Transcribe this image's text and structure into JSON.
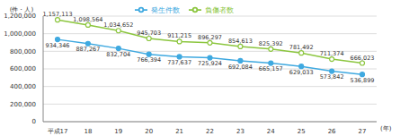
{
  "chart_data": {
    "type": "line",
    "y_label": "(件・人)",
    "x_label": "(年)",
    "categories": [
      "平成17",
      "18",
      "19",
      "20",
      "21",
      "22",
      "23",
      "24",
      "25",
      "26",
      "27"
    ],
    "series": [
      {
        "name": "発生件数",
        "color": "#3fa9e0",
        "marker": "circle",
        "values": [
          934346,
          887267,
          832704,
          766394,
          737637,
          725924,
          692084,
          665157,
          629033,
          573842,
          536899
        ],
        "value_labels": [
          "934,346",
          "887,267",
          "832,704",
          "766,394",
          "737,637",
          "725,924",
          "692,084",
          "665,157",
          "629,033",
          "573,842",
          "536,899"
        ]
      },
      {
        "name": "負傷者数",
        "color": "#8cc63f",
        "marker": "circle-open",
        "values": [
          1157113,
          1098564,
          1034652,
          945703,
          911215,
          896297,
          854613,
          825392,
          781492,
          711374,
          666023
        ],
        "value_labels": [
          "1,157,113",
          "1,098,564",
          "1,034,652",
          "945,703",
          "911,215",
          "896,297",
          "854,613",
          "825,392",
          "781,492",
          "711,374",
          "666,023"
        ]
      }
    ],
    "ylim": [
      0,
      1200000
    ],
    "yticks": [
      0,
      {
        "value": 200000,
        "label": "200,000"
      },
      {
        "value": 400000,
        "label": "400,000"
      },
      {
        "value": 600000,
        "label": "600,000"
      },
      {
        "value": 800000,
        "label": "800,000"
      },
      {
        "value": 1000000,
        "label": "1,000,000"
      },
      {
        "value": 1200000,
        "label": "1,200,000"
      }
    ],
    "grid": true,
    "legend": "top",
    "data_labels": true
  }
}
